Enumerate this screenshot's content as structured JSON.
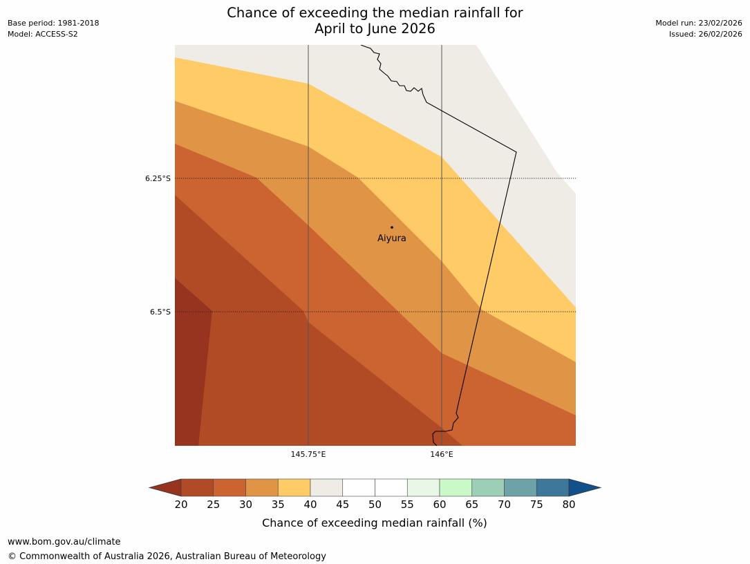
{
  "header": {
    "title_line1": "Chance of exceeding the median rainfall for",
    "title_line2": "April to June 2026",
    "base_period": "Base period: 1981-2018",
    "model": "Model: ACCESS-S2",
    "model_run": "Model run: 23/02/2026",
    "issued": "Issued: 26/02/2026"
  },
  "map": {
    "lat_labels": [
      "6.25°S",
      "6.5°S"
    ],
    "lon_labels": [
      "145.75°E",
      "146°E"
    ],
    "place_name": "Aiyura",
    "zone_colors": {
      "below_20": "#97341f",
      "20_25": "#b04b25",
      "25_30": "#cb6431",
      "30_35": "#e09446",
      "35_40": "#fecb67",
      "40_45": "#efebe5"
    }
  },
  "legend": {
    "title": "Chance of exceeding median rainfall (%)",
    "ticks": [
      "20",
      "25",
      "30",
      "35",
      "40",
      "45",
      "50",
      "55",
      "60",
      "65",
      "70",
      "75",
      "80"
    ],
    "colors": [
      "#b04b25",
      "#cb6431",
      "#e09446",
      "#fecb67",
      "#efebe5",
      "#ffffff",
      "#ffffff",
      "#e9f7e6",
      "#c8f9c7",
      "#9dcfb7",
      "#6da3a6",
      "#3d7799"
    ],
    "under_color": "#97341f",
    "over_color": "#12508b"
  },
  "footer": {
    "url": "www.bom.gov.au/climate",
    "copyright": "© Commonwealth of Australia 2026, Australian Bureau of Meteorology"
  }
}
